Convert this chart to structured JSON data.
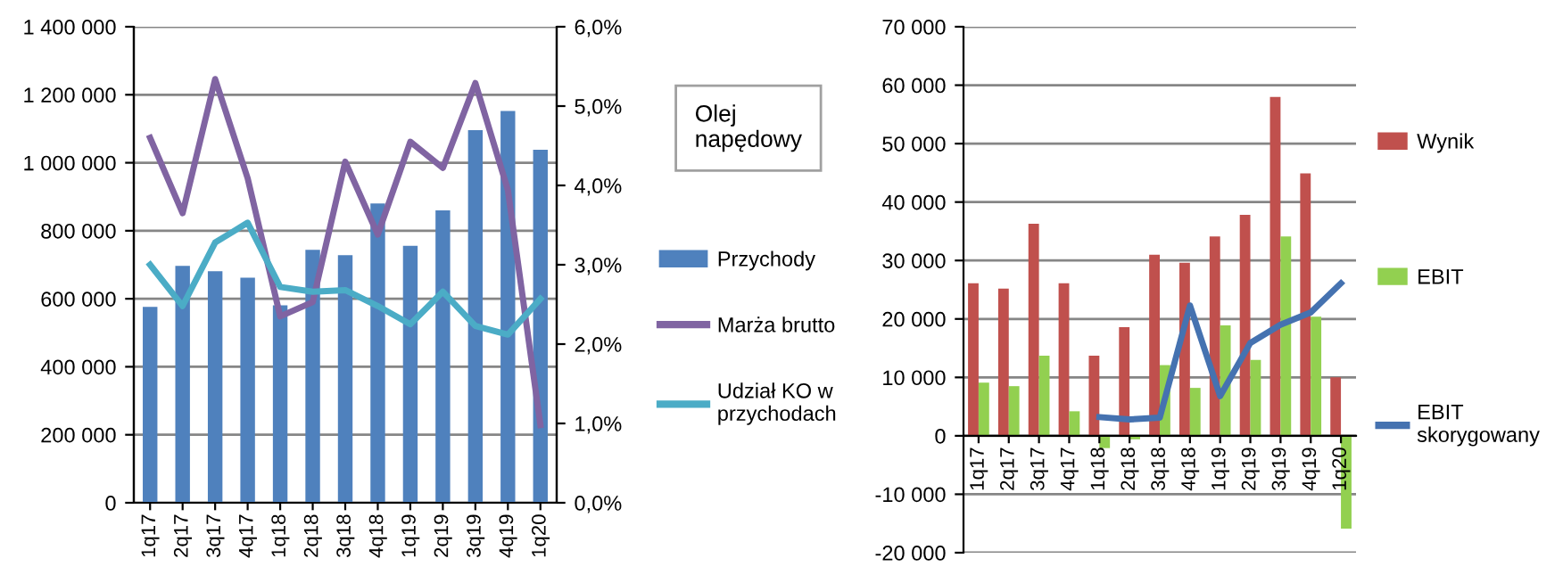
{
  "chart_data": [
    {
      "type": "bar",
      "legend_title": "Olej napędowy",
      "categories": [
        "1q17",
        "2q17",
        "3q17",
        "4q17",
        "1q18",
        "2q18",
        "3q18",
        "4q18",
        "1q19",
        "2q19",
        "3q19",
        "4q19",
        "1q20"
      ],
      "series": [
        {
          "name": "Przychody",
          "type": "bar",
          "color": "#4f81bd",
          "values": [
            576000,
            697000,
            681000,
            662000,
            581000,
            744000,
            728000,
            880000,
            756000,
            860000,
            1096000,
            1152000,
            1038000
          ]
        },
        {
          "name": "Marża brutto",
          "type": "line",
          "axis": "y2",
          "color": "#8064a2",
          "values": [
            4.6,
            3.65,
            5.34,
            4.09,
            2.35,
            2.53,
            4.3,
            3.38,
            4.55,
            4.22,
            5.29,
            3.94,
            0.98
          ]
        },
        {
          "name": "Udział KO w przychodach",
          "type": "line",
          "axis": "y2",
          "color": "#4bacc6",
          "values": [
            3.0,
            2.48,
            3.28,
            3.53,
            2.72,
            2.66,
            2.68,
            2.48,
            2.25,
            2.66,
            2.23,
            2.12,
            2.57
          ]
        }
      ],
      "ylim": [
        0,
        1400000
      ],
      "yticks": [
        0,
        {
          "value": 200000,
          "label": "200 000"
        },
        {
          "value": 400000,
          "label": "400 000"
        },
        {
          "value": 600000,
          "label": "600 000"
        },
        {
          "value": 800000,
          "label": "800 000"
        },
        {
          "value": 1000000,
          "label": "1 000 000"
        },
        {
          "value": 1200000,
          "label": "1 200 000"
        },
        {
          "value": 1400000,
          "label": "1 400 000"
        }
      ],
      "y2lim": [
        0,
        6
      ],
      "y2ticks": [
        {
          "value": 0,
          "label": "0,0%"
        },
        {
          "value": 1,
          "label": "1,0%"
        },
        {
          "value": 2,
          "label": "2,0%"
        },
        {
          "value": 3,
          "label": "3,0%"
        },
        {
          "value": 4,
          "label": "4,0%"
        },
        {
          "value": 5,
          "label": "5,0%"
        },
        {
          "value": 6,
          "label": "6,0%"
        }
      ],
      "grid": "y",
      "legend": "right"
    },
    {
      "type": "bar",
      "categories": [
        "1q17",
        "2q17",
        "3q17",
        "4q17",
        "1q18",
        "2q18",
        "3q18",
        "4q18",
        "1q19",
        "2q19",
        "3q19",
        "4q19",
        "1q20"
      ],
      "series": [
        {
          "name": "Wynik",
          "type": "bar",
          "color": "#c0504d",
          "values": [
            26100,
            25200,
            36300,
            26100,
            13700,
            18600,
            31000,
            29600,
            34100,
            37800,
            58000,
            44900,
            10000
          ]
        },
        {
          "name": "EBIT",
          "type": "bar",
          "color": "#92d050",
          "values": [
            9100,
            8500,
            13700,
            4200,
            -2100,
            -600,
            12100,
            8200,
            18900,
            13000,
            34100,
            20400,
            -15900
          ]
        },
        {
          "name": "EBIT skorygowany",
          "type": "line",
          "color": "#4572b0",
          "values": [
            null,
            null,
            null,
            null,
            3200,
            2800,
            3100,
            22300,
            6800,
            15900,
            19000,
            21100,
            26100
          ]
        }
      ],
      "ylim": [
        -20000,
        70000
      ],
      "yticks": [
        {
          "value": -20000,
          "label": "-20 000"
        },
        {
          "value": -10000,
          "label": "-10 000"
        },
        0,
        {
          "value": 10000,
          "label": "10 000"
        },
        {
          "value": 20000,
          "label": "20 000"
        },
        {
          "value": 30000,
          "label": "30 000"
        },
        {
          "value": 40000,
          "label": "40 000"
        },
        {
          "value": 50000,
          "label": "50 000"
        },
        {
          "value": 60000,
          "label": "60 000"
        },
        {
          "value": 70000,
          "label": "70 000"
        }
      ],
      "grid": "y",
      "legend": "right"
    }
  ]
}
